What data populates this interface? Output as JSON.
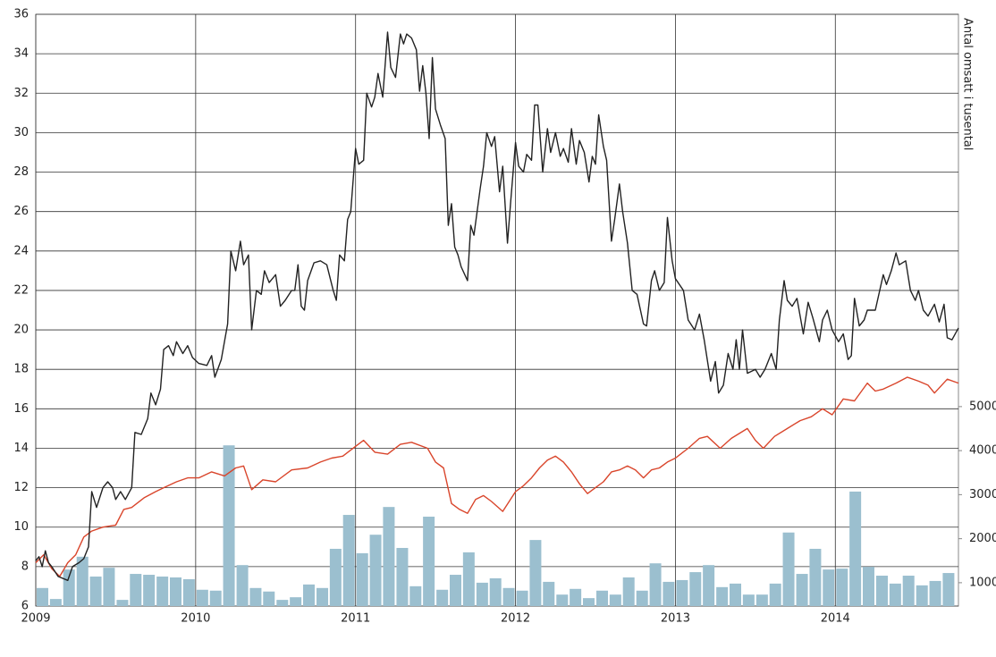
{
  "chart_data": {
    "type": "line",
    "y2label": "Antal omsatt i tusental",
    "xlim": [
      2009,
      2014.77
    ],
    "xticks": [
      2009,
      2010,
      2011,
      2012,
      2013,
      2014
    ],
    "ylim": [
      6,
      36
    ],
    "yticks": [
      6,
      8,
      10,
      12,
      14,
      16,
      18,
      20,
      22,
      24,
      26,
      28,
      30,
      32,
      34,
      36
    ],
    "y2lim": [
      470,
      13910
    ],
    "y2ticks": [
      1000,
      2000,
      3000,
      4000,
      5000
    ],
    "grid": true,
    "series": [
      {
        "type": "bar",
        "axis": "y2",
        "color": "#9bbfcf",
        "x": [
          2009.042,
          2009.125,
          2009.208,
          2009.292,
          2009.375,
          2009.458,
          2009.542,
          2009.625,
          2009.708,
          2009.792,
          2009.875,
          2009.958,
          2010.042,
          2010.125,
          2010.208,
          2010.292,
          2010.375,
          2010.458,
          2010.542,
          2010.625,
          2010.708,
          2010.792,
          2010.875,
          2010.958,
          2011.042,
          2011.125,
          2011.208,
          2011.292,
          2011.375,
          2011.458,
          2011.542,
          2011.625,
          2011.708,
          2011.792,
          2011.875,
          2011.958,
          2012.042,
          2012.125,
          2012.208,
          2012.292,
          2012.375,
          2012.458,
          2012.542,
          2012.625,
          2012.708,
          2012.792,
          2012.875,
          2012.958,
          2013.042,
          2013.125,
          2013.208,
          2013.292,
          2013.375,
          2013.458,
          2013.542,
          2013.625,
          2013.708,
          2013.792,
          2013.875,
          2013.958,
          2014.042,
          2014.125,
          2014.208,
          2014.292,
          2014.375,
          2014.458,
          2014.542,
          2014.625,
          2014.708
        ],
        "values": [
          880,
          630,
          1300,
          1590,
          1140,
          1340,
          610,
          1200,
          1180,
          1140,
          1120,
          1080,
          840,
          820,
          4120,
          1400,
          880,
          800,
          610,
          670,
          960,
          880,
          1770,
          2540,
          1670,
          2090,
          2720,
          1790,
          920,
          2500,
          840,
          1180,
          1690,
          1000,
          1100,
          880,
          820,
          1970,
          1020,
          730,
          860,
          650,
          820,
          730,
          1120,
          820,
          1440,
          1020,
          1060,
          1240,
          1400,
          900,
          980,
          730,
          730,
          980,
          2140,
          1200,
          1770,
          1300,
          1320,
          3070,
          1360,
          1160,
          980,
          1160,
          940,
          1040,
          1220
        ]
      },
      {
        "color": "#d9452b",
        "x": [
          2009,
          2009.05,
          2009.1,
          2009.15,
          2009.2,
          2009.25,
          2009.3,
          2009.35,
          2009.42,
          2009.5,
          2009.55,
          2009.6,
          2009.68,
          2009.75,
          2009.8,
          2009.88,
          2009.95,
          2010.02,
          2010.1,
          2010.18,
          2010.25,
          2010.3,
          2010.35,
          2010.42,
          2010.5,
          2010.6,
          2010.7,
          2010.78,
          2010.85,
          2010.92,
          2011,
          2011.05,
          2011.12,
          2011.2,
          2011.28,
          2011.35,
          2011.45,
          2011.5,
          2011.55,
          2011.6,
          2011.65,
          2011.7,
          2011.75,
          2011.8,
          2011.85,
          2011.92,
          2012,
          2012.05,
          2012.1,
          2012.15,
          2012.2,
          2012.25,
          2012.3,
          2012.35,
          2012.4,
          2012.45,
          2012.5,
          2012.55,
          2012.6,
          2012.65,
          2012.7,
          2012.75,
          2012.8,
          2012.85,
          2012.9,
          2012.95,
          2013,
          2013.08,
          2013.15,
          2013.2,
          2013.28,
          2013.35,
          2013.45,
          2013.5,
          2013.55,
          2013.62,
          2013.7,
          2013.78,
          2013.85,
          2013.92,
          2013.98,
          2014.05,
          2014.12,
          2014.2,
          2014.25,
          2014.3,
          2014.38,
          2014.45,
          2014.52,
          2014.58,
          2014.62,
          2014.7,
          2014.77
        ],
        "values": [
          8.2,
          8.6,
          7.9,
          7.5,
          8.2,
          8.6,
          9.5,
          9.8,
          10.0,
          10.1,
          10.9,
          11.0,
          11.5,
          11.8,
          12.0,
          12.3,
          12.5,
          12.5,
          12.8,
          12.6,
          13.0,
          13.1,
          11.9,
          12.4,
          12.3,
          12.9,
          13.0,
          13.3,
          13.5,
          13.6,
          14.1,
          14.4,
          13.8,
          13.7,
          14.2,
          14.3,
          14.0,
          13.3,
          13.0,
          11.2,
          10.9,
          10.7,
          11.4,
          11.6,
          11.3,
          10.8,
          11.8,
          12.1,
          12.5,
          13.0,
          13.4,
          13.6,
          13.3,
          12.8,
          12.2,
          11.7,
          12.0,
          12.3,
          12.8,
          12.9,
          13.1,
          12.9,
          12.5,
          12.9,
          13.0,
          13.3,
          13.5,
          14.0,
          14.5,
          14.6,
          14.0,
          14.5,
          15.0,
          14.4,
          14.0,
          14.6,
          15.0,
          15.4,
          15.6,
          16.0,
          15.7,
          16.5,
          16.4,
          17.3,
          16.9,
          17.0,
          17.3,
          17.6,
          17.4,
          17.2,
          16.8,
          17.5,
          17.3
        ]
      },
      {
        "color": "#222222",
        "x": [
          2009,
          2009.02,
          2009.04,
          2009.06,
          2009.08,
          2009.1,
          2009.14,
          2009.2,
          2009.23,
          2009.27,
          2009.3,
          2009.33,
          2009.35,
          2009.38,
          2009.42,
          2009.45,
          2009.48,
          2009.5,
          2009.53,
          2009.56,
          2009.6,
          2009.62,
          2009.66,
          2009.7,
          2009.72,
          2009.75,
          2009.78,
          2009.8,
          2009.83,
          2009.86,
          2009.88,
          2009.92,
          2009.95,
          2009.98,
          2010.02,
          2010.07,
          2010.1,
          2010.12,
          2010.16,
          2010.2,
          2010.22,
          2010.25,
          2010.28,
          2010.3,
          2010.33,
          2010.35,
          2010.38,
          2010.41,
          2010.43,
          2010.46,
          2010.5,
          2010.53,
          2010.56,
          2010.6,
          2010.62,
          2010.64,
          2010.66,
          2010.68,
          2010.7,
          2010.74,
          2010.78,
          2010.82,
          2010.86,
          2010.88,
          2010.9,
          2010.93,
          2010.95,
          2010.97,
          2011,
          2011.02,
          2011.05,
          2011.07,
          2011.1,
          2011.12,
          2011.14,
          2011.17,
          2011.2,
          2011.22,
          2011.25,
          2011.28,
          2011.3,
          2011.32,
          2011.35,
          2011.38,
          2011.4,
          2011.42,
          2011.44,
          2011.46,
          2011.48,
          2011.5,
          2011.53,
          2011.56,
          2011.58,
          2011.6,
          2011.62,
          2011.64,
          2011.66,
          2011.7,
          2011.72,
          2011.74,
          2011.78,
          2011.8,
          2011.82,
          2011.85,
          2011.87,
          2011.9,
          2011.92,
          2011.95,
          2011.97,
          2012,
          2012.02,
          2012.05,
          2012.07,
          2012.1,
          2012.12,
          2012.14,
          2012.17,
          2012.2,
          2012.22,
          2012.25,
          2012.28,
          2012.3,
          2012.33,
          2012.35,
          2012.38,
          2012.4,
          2012.43,
          2012.46,
          2012.48,
          2012.5,
          2012.52,
          2012.55,
          2012.57,
          2012.6,
          2012.62,
          2012.65,
          2012.67,
          2012.7,
          2012.73,
          2012.76,
          2012.8,
          2012.82,
          2012.85,
          2012.87,
          2012.9,
          2012.93,
          2012.95,
          2012.98,
          2013,
          2013.05,
          2013.08,
          2013.12,
          2013.15,
          2013.18,
          2013.22,
          2013.25,
          2013.27,
          2013.3,
          2013.33,
          2013.36,
          2013.38,
          2013.4,
          2013.42,
          2013.45,
          2013.5,
          2013.53,
          2013.56,
          2013.6,
          2013.63,
          2013.65,
          2013.68,
          2013.7,
          2013.73,
          2013.76,
          2013.8,
          2013.83,
          2013.86,
          2013.9,
          2013.92,
          2013.95,
          2013.98,
          2014.02,
          2014.05,
          2014.08,
          2014.1,
          2014.12,
          2014.15,
          2014.18,
          2014.2,
          2014.25,
          2014.3,
          2014.32,
          2014.35,
          2014.38,
          2014.4,
          2014.44,
          2014.47,
          2014.5,
          2014.52,
          2014.55,
          2014.58,
          2014.62,
          2014.65,
          2014.68,
          2014.7,
          2014.73,
          2014.77
        ],
        "values": [
          8.3,
          8.5,
          8.0,
          8.8,
          8.2,
          8.0,
          7.5,
          7.3,
          8.0,
          8.2,
          8.4,
          9.0,
          11.8,
          11.0,
          12.0,
          12.3,
          12.0,
          11.4,
          11.8,
          11.4,
          12.0,
          14.8,
          14.7,
          15.5,
          16.8,
          16.2,
          17.0,
          19.0,
          19.2,
          18.7,
          19.4,
          18.8,
          19.2,
          18.6,
          18.3,
          18.2,
          18.7,
          17.6,
          18.5,
          20.3,
          24.0,
          23.0,
          24.5,
          23.3,
          23.8,
          20.0,
          22.0,
          21.8,
          23.0,
          22.4,
          22.8,
          21.2,
          21.5,
          22.0,
          22.0,
          23.3,
          21.2,
          21.0,
          22.5,
          23.4,
          23.5,
          23.3,
          22.0,
          21.5,
          23.8,
          23.5,
          25.6,
          26.0,
          29.2,
          28.4,
          28.6,
          32.0,
          31.3,
          31.8,
          33.0,
          31.8,
          35.1,
          33.3,
          32.8,
          35.0,
          34.5,
          35.0,
          34.8,
          34.2,
          32.1,
          33.4,
          32.0,
          29.7,
          33.8,
          31.2,
          30.4,
          29.7,
          25.3,
          26.4,
          24.2,
          23.8,
          23.2,
          22.5,
          25.3,
          24.8,
          27.2,
          28.3,
          30.0,
          29.3,
          29.8,
          27.0,
          28.3,
          24.4,
          26.5,
          29.5,
          28.3,
          28.0,
          28.9,
          28.6,
          31.4,
          31.4,
          28.0,
          30.2,
          29.0,
          30.0,
          28.8,
          29.2,
          28.5,
          30.2,
          28.4,
          29.6,
          29.0,
          27.5,
          28.8,
          28.4,
          30.9,
          29.3,
          28.6,
          24.5,
          25.6,
          27.4,
          26.0,
          24.4,
          22.0,
          21.8,
          20.3,
          20.2,
          22.5,
          23.0,
          22.0,
          22.4,
          25.7,
          23.5,
          22.6,
          22.0,
          20.5,
          20.0,
          20.8,
          19.5,
          17.4,
          18.4,
          16.8,
          17.2,
          18.8,
          18.0,
          19.5,
          18.0,
          20.0,
          17.8,
          18.0,
          17.6,
          18.0,
          18.8,
          18.0,
          20.5,
          22.5,
          21.5,
          21.2,
          21.6,
          19.8,
          21.4,
          20.6,
          19.4,
          20.5,
          21.0,
          20.0,
          19.4,
          19.8,
          18.5,
          18.7,
          21.6,
          20.2,
          20.5,
          21.0,
          21.0,
          22.8,
          22.3,
          23.0,
          23.9,
          23.3,
          23.5,
          22.0,
          21.5,
          22.0,
          21.0,
          20.7,
          21.3,
          20.4,
          21.3,
          19.6,
          19.5,
          20.1
        ]
      }
    ]
  }
}
